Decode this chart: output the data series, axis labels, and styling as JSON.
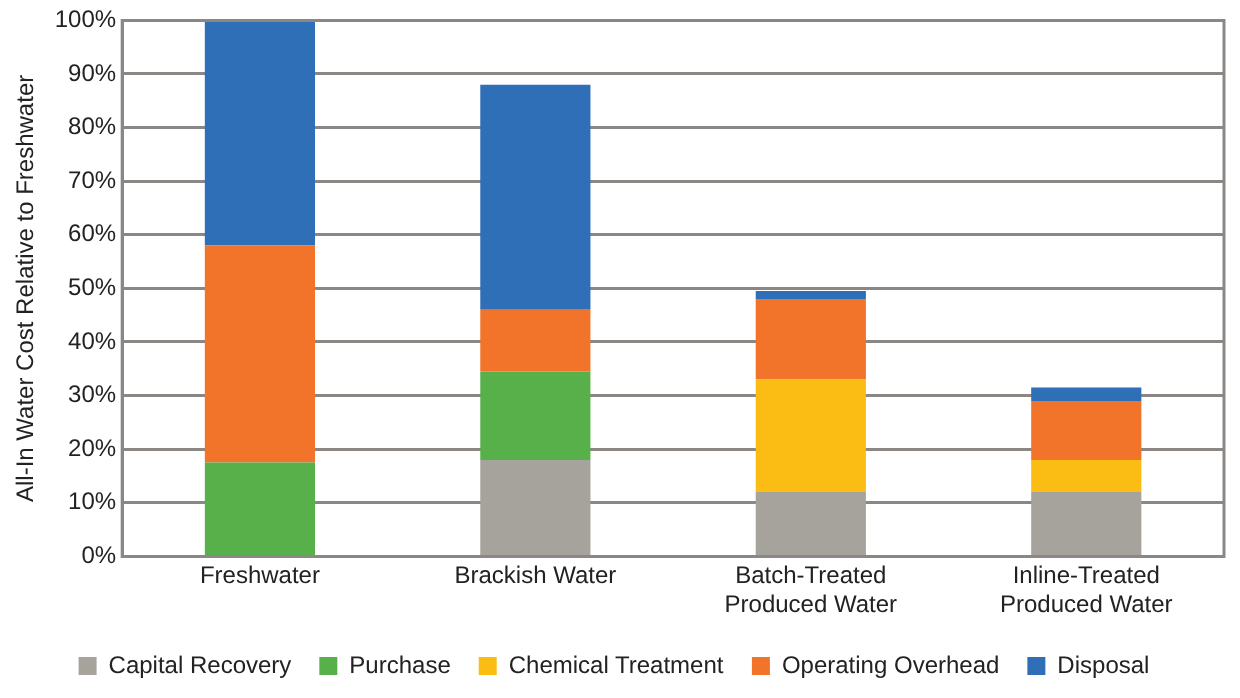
{
  "chart_data": {
    "type": "bar",
    "stacked": true,
    "ylabel": "All-In Water Cost Relative to Freshwater",
    "categories": [
      "Freshwater",
      "Brackish Water",
      "Batch-Treated Produced Water",
      "Inline-Treated Produced Water"
    ],
    "series": [
      {
        "name": "Capital Recovery",
        "color": "#a6a29c",
        "values": [
          0,
          18,
          12,
          12
        ]
      },
      {
        "name": "Purchase",
        "color": "#58b04a",
        "values": [
          17.5,
          16.5,
          0,
          0
        ]
      },
      {
        "name": "Chemical Treatment",
        "color": "#fbbd14",
        "values": [
          0,
          0,
          21,
          6
        ]
      },
      {
        "name": "Operating Overhead",
        "color": "#f2742a",
        "values": [
          40.5,
          11.5,
          15,
          11
        ]
      },
      {
        "name": "Disposal",
        "color": "#2f6fb7",
        "values": [
          42,
          42,
          1.5,
          2.5
        ]
      }
    ],
    "ylim": [
      0,
      100
    ],
    "yticks": [
      {
        "value": 0,
        "label": "0%"
      },
      {
        "value": 10,
        "label": "10%"
      },
      {
        "value": 20,
        "label": "20%"
      },
      {
        "value": 30,
        "label": "30%"
      },
      {
        "value": 40,
        "label": "40%"
      },
      {
        "value": 50,
        "label": "50%"
      },
      {
        "value": 60,
        "label": "60%"
      },
      {
        "value": 70,
        "label": "70%"
      },
      {
        "value": 80,
        "label": "80%"
      },
      {
        "value": 90,
        "label": "90%"
      },
      {
        "value": 100,
        "label": "100%"
      }
    ],
    "grid": "y",
    "legend": "bottom"
  }
}
